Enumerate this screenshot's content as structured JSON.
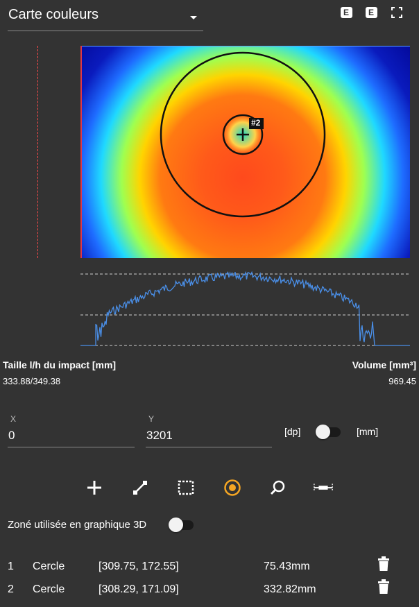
{
  "header": {
    "view_select": "Carte couleurs",
    "export_btn_1": "E",
    "export_btn_2": "E"
  },
  "heatmap": {
    "marker_label": "#2"
  },
  "stats": {
    "size_label": "Taille l/h du impact [mm]",
    "size_value": "333.88/349.38",
    "volume_label": "Volume [mm³]",
    "volume_value": "969.45"
  },
  "coords": {
    "x_caption": "X",
    "x_value": "0",
    "y_caption": "Y",
    "y_value": "3201",
    "unit_dp": "[dp]",
    "unit_mm": "[mm]"
  },
  "tools": [
    "plus-tool",
    "line-tool",
    "rectangle-tool",
    "circle-tool",
    "zoom-tool",
    "measure-tool"
  ],
  "toggle3d": {
    "label": "Zoné utilisée en graphique 3D"
  },
  "zones": [
    {
      "index": "1",
      "shape": "Cercle",
      "center": "[309.75, 172.55]",
      "size": "75.43mm"
    },
    {
      "index": "2",
      "shape": "Cercle",
      "center": "[308.29, 171.09]",
      "size": "332.82mm"
    }
  ],
  "colors": {
    "accent": "#f5a623",
    "profile_line": "#4a8fe8",
    "background": "#333333"
  }
}
